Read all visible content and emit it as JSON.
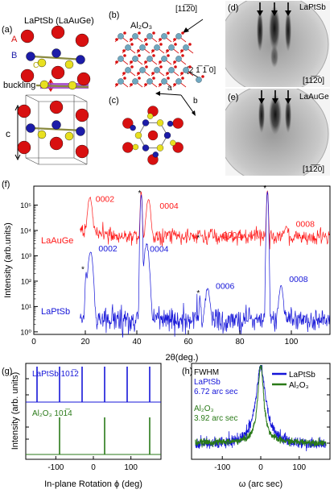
{
  "panel_a": {
    "label": "(a)",
    "title": "LaPtSb (LaAuGe)",
    "site_a": "A",
    "site_b": "B",
    "site_c": "C",
    "buckling": "buckling",
    "c_axis": "c"
  },
  "panel_b": {
    "label": "(b)",
    "substrate": "Al₂O₃",
    "dir_top": "[11̅2̅0]",
    "dir_right": "[2 1̅ 1̅ 0]"
  },
  "panel_c": {
    "label": "(c)",
    "axis_a": "a",
    "axis_b": "b"
  },
  "panel_d": {
    "label": "(d)",
    "material": "LaPtSb",
    "direction": "[11̅2̅0]"
  },
  "panel_e": {
    "label": "(e)",
    "material": "LaAuGe",
    "direction": "[11̅2̅0]"
  },
  "colors": {
    "red": "#ff1a1a",
    "blue": "#1515d8",
    "green": "#2a7a18",
    "atom_red": "#d81010",
    "atom_blue": "#1c1ca8",
    "atom_yellow": "#e8e020",
    "atom_cyan": "#6fa8c0"
  },
  "chart_data": [
    {
      "panel": "(f)",
      "type": "line",
      "xlabel": "2θ(deg.)",
      "ylabel": "Intensity (arb.units)",
      "xlim": [
        0,
        115
      ],
      "ylim_log": [
        1,
        500000
      ],
      "y_scale": "log",
      "x_ticks": [
        0,
        20,
        40,
        60,
        80,
        100
      ],
      "y_ticks": [
        "10⁰",
        "10¹",
        "10²",
        "10³",
        "10⁴",
        "10⁵"
      ],
      "series": [
        {
          "name": "LaAuGe",
          "color": "#ff1a1a",
          "baseline": 8000,
          "peaks": [
            {
              "x": 21.8,
              "y": 180000,
              "label": "0002"
            },
            {
              "x": 41.7,
              "y": 350000,
              "label": "*"
            },
            {
              "x": 44.5,
              "y": 150000,
              "label": "0004"
            },
            {
              "x": 64.5,
              "y": 3000,
              "label": "*"
            },
            {
              "x": 69.0,
              "y": 4500,
              "label": "0006"
            },
            {
              "x": 90.7,
              "y": 400000,
              "label": "*"
            },
            {
              "x": 98.0,
              "y": 9000,
              "label": "0008"
            }
          ]
        },
        {
          "name": "LaPtSb",
          "color": "#1515d8",
          "baseline": 3,
          "peaks": [
            {
              "x": 20.3,
              "y": 200,
              "label": "*"
            },
            {
              "x": 22.0,
              "y": 1500,
              "label": "0002"
            },
            {
              "x": 41.7,
              "y": 300000,
              "label": ""
            },
            {
              "x": 43.8,
              "y": 3000,
              "label": "0004"
            },
            {
              "x": 64.5,
              "y": 20,
              "label": "*"
            },
            {
              "x": 67.5,
              "y": 50,
              "label": "0006"
            },
            {
              "x": 90.7,
              "y": 300000,
              "label": ""
            },
            {
              "x": 96.0,
              "y": 60,
              "label": "0008"
            }
          ]
        }
      ]
    },
    {
      "panel": "(g)",
      "type": "line",
      "xlabel": "In-plane Rotation ϕ (deg)",
      "ylabel": "Intensity (arb. units)",
      "xlim": [
        -180,
        180
      ],
      "x_ticks": [
        -100,
        0,
        100
      ],
      "series": [
        {
          "name": "LaPtSb 101̅2",
          "color": "#1515d8",
          "peaks": [
            -150,
            -90,
            -30,
            30,
            90,
            150
          ]
        },
        {
          "name": "Al₂O₃ 101̅4",
          "color": "#2a7a18",
          "peaks": [
            -90,
            30,
            150
          ]
        }
      ]
    },
    {
      "panel": "(h)",
      "type": "line",
      "xlabel": "ω (arc sec)",
      "xlim": [
        -180,
        180
      ],
      "x_ticks": [
        -100,
        0,
        100
      ],
      "annotation": "FWHM",
      "legend_placement": "top-right",
      "series": [
        {
          "name": "LaPtSb",
          "color": "#1515d8",
          "fwhm": "6.72 arc sec"
        },
        {
          "name": "Al₂O₃",
          "color": "#2a7a18",
          "fwhm": "3.92 arc sec"
        }
      ]
    }
  ]
}
